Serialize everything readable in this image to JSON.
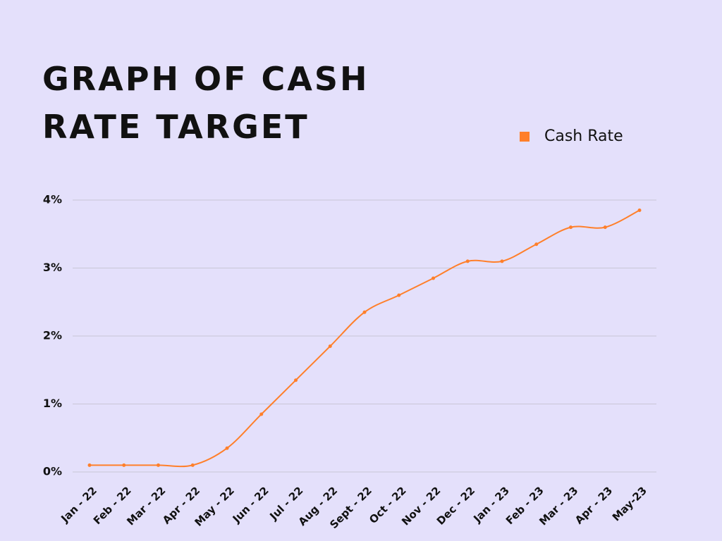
{
  "chart_data": {
    "type": "line",
    "title": "GRAPH OF CASH RATE TARGET",
    "categories": [
      "Jan - 22",
      "Feb - 22",
      "Mar - 22",
      "Apr - 22",
      "May - 22",
      "Jun - 22",
      "Jul - 22",
      "Aug - 22",
      "Sept - 22",
      "Oct - 22",
      "Nov - 22",
      "Dec - 22",
      "Jan - 23",
      "Feb - 23",
      "Mar - 23",
      "Apr - 23",
      "May-23"
    ],
    "series": [
      {
        "name": "Cash Rate",
        "color": "#ff7f2a",
        "values": [
          0.1,
          0.1,
          0.1,
          0.1,
          0.35,
          0.85,
          1.35,
          1.85,
          2.35,
          2.6,
          2.85,
          3.1,
          3.1,
          3.35,
          3.6,
          3.6,
          3.85
        ]
      }
    ],
    "ylim": [
      0,
      4
    ],
    "yticks": [
      {
        "value": 0,
        "label": "0%"
      },
      {
        "value": 1,
        "label": "1%"
      },
      {
        "value": 2,
        "label": "2%"
      },
      {
        "value": 3,
        "label": "3%"
      },
      {
        "value": 4,
        "label": "4%"
      }
    ],
    "grid": true,
    "legend": "top-right"
  }
}
